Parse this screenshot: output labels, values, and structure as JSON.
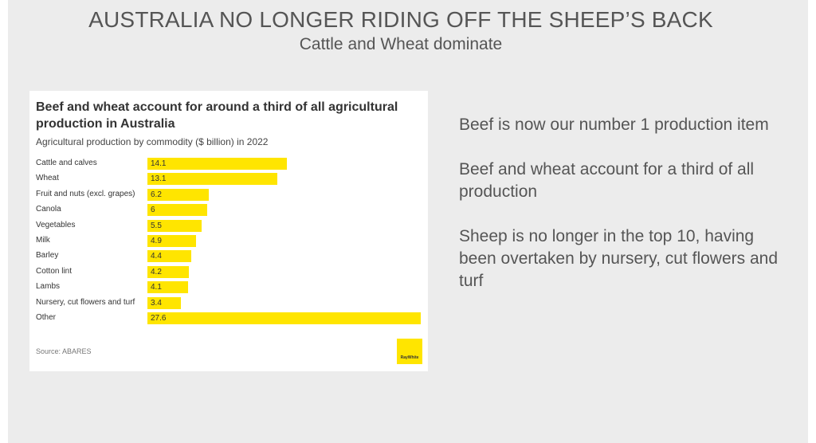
{
  "slide": {
    "title": "AUSTRALIA NO LONGER RIDING OFF THE SHEEP’S BACK",
    "subtitle": "Cattle and Wheat dominate"
  },
  "chart_data": {
    "type": "bar",
    "orientation": "horizontal",
    "title": "Beef and wheat account for around a third of all agricultural production in Australia",
    "subtitle": "Agricultural production by commodity ($ billion) in 2022",
    "categories": [
      "Cattle and calves",
      "Wheat",
      "Fruit and nuts (excl. grapes)",
      "Canola",
      "Vegetables",
      "Milk",
      "Barley",
      "Cotton lint",
      "Lambs",
      "Nursery, cut flowers and turf",
      "Other"
    ],
    "values": [
      14.1,
      13.1,
      6.2,
      6,
      5.5,
      4.9,
      4.4,
      4.2,
      4.1,
      3.4,
      27.6
    ],
    "value_labels": [
      "14.1",
      "13.1",
      "6.2",
      "6",
      "5.5",
      "4.9",
      "4.4",
      "4.2",
      "4.1",
      "3.4",
      "27.6"
    ],
    "source": "Source: ABARES",
    "xlim": [
      0,
      27.6
    ],
    "bar_color": "#ffe500"
  },
  "logo": {
    "text": "RayWhite"
  },
  "bullets": [
    "Beef is now our number 1 production item",
    "Beef and wheat account for a third of all production",
    "Sheep is no longer in the top 10, having been overtaken by nursery, cut flowers and turf"
  ]
}
